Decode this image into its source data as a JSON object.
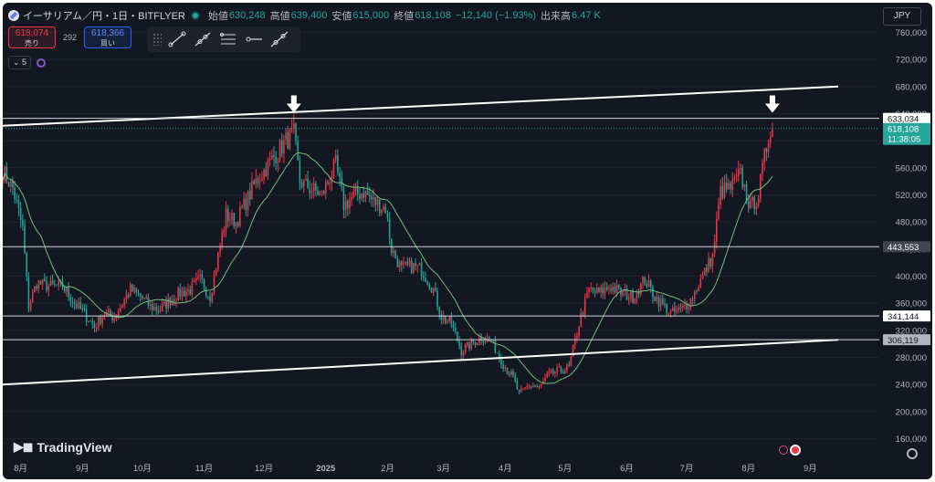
{
  "header": {
    "symbol": "イーサリアム／円・1日・BITFLYER",
    "open_label": "始値",
    "open": "630,248",
    "high_label": "高値",
    "high": "639,400",
    "low_label": "安値",
    "low": "615,000",
    "close_label": "終値",
    "close": "618,108",
    "change": "−12,140 (−1.93%)",
    "volume_label": "出来高",
    "volume": "6.47 K",
    "currency": "JPY"
  },
  "prices": {
    "sell_value": "618,074",
    "sell_label": "売り",
    "spread": "292",
    "buy_value": "618,366",
    "buy_label": "買い"
  },
  "indicator": {
    "tag": "5"
  },
  "tools": [
    "trend-line-icon",
    "ray-icon",
    "parallel-channel-icon",
    "horizontal-ray-icon",
    "extended-line-icon"
  ],
  "brand": {
    "text": "TradingView"
  },
  "colors": {
    "up": "#f23645",
    "down": "#26a69a",
    "ma": "#6fbf7f",
    "line": "#ffffff",
    "background": "#131722"
  },
  "chart_data": {
    "type": "candlestick",
    "x_ticks": [
      "8月",
      "9月",
      "10月",
      "11月",
      "12月",
      "2025",
      "2月",
      "3月",
      "4月",
      "5月",
      "6月",
      "7月",
      "8月",
      "9月"
    ],
    "y_ticks": [
      "160,000",
      "200,000",
      "240,000",
      "280,000",
      "320,000",
      "360,000",
      "400,000",
      "440,000",
      "480,000",
      "520,000",
      "560,000",
      "600,000",
      "640,000",
      "680,000",
      "720,000",
      "760,000"
    ],
    "ylim": [
      150000,
      770000
    ],
    "price_labels": [
      {
        "value": "633,034",
        "price": 633034
      },
      {
        "value": "618,108",
        "price": 618108,
        "countdown": "11:38:05"
      },
      {
        "value": "443,553",
        "price": 443553
      },
      {
        "value": "341,144",
        "price": 341144
      },
      {
        "value": "306,119",
        "price": 306119
      }
    ],
    "series_points": [
      [
        "2024-07-23",
        555000
      ],
      [
        "2024-07-28",
        530000
      ],
      [
        "2024-08-02",
        470000
      ],
      [
        "2024-08-05",
        355000
      ],
      [
        "2024-08-09",
        390000
      ],
      [
        "2024-08-15",
        385000
      ],
      [
        "2024-08-22",
        385000
      ],
      [
        "2024-08-28",
        360000
      ],
      [
        "2024-09-02",
        345000
      ],
      [
        "2024-09-07",
        325000
      ],
      [
        "2024-09-12",
        345000
      ],
      [
        "2024-09-17",
        340000
      ],
      [
        "2024-09-25",
        380000
      ],
      [
        "2024-09-30",
        370000
      ],
      [
        "2024-10-05",
        355000
      ],
      [
        "2024-10-10",
        350000
      ],
      [
        "2024-10-15",
        365000
      ],
      [
        "2024-10-20",
        375000
      ],
      [
        "2024-10-25",
        380000
      ],
      [
        "2024-10-30",
        395000
      ],
      [
        "2024-11-04",
        370000
      ],
      [
        "2024-11-08",
        430000
      ],
      [
        "2024-11-12",
        490000
      ],
      [
        "2024-11-17",
        480000
      ],
      [
        "2024-11-22",
        510000
      ],
      [
        "2024-11-27",
        540000
      ],
      [
        "2024-12-02",
        560000
      ],
      [
        "2024-12-07",
        580000
      ],
      [
        "2024-12-12",
        600000
      ],
      [
        "2024-12-16",
        610000
      ],
      [
        "2024-12-19",
        540000
      ],
      [
        "2024-12-24",
        530000
      ],
      [
        "2024-12-30",
        520000
      ],
      [
        "2025-01-06",
        565000
      ],
      [
        "2025-01-10",
        505000
      ],
      [
        "2025-01-16",
        520000
      ],
      [
        "2025-01-20",
        525000
      ],
      [
        "2025-01-25",
        510000
      ],
      [
        "2025-01-31",
        500000
      ],
      [
        "2025-02-03",
        440000
      ],
      [
        "2025-02-08",
        410000
      ],
      [
        "2025-02-13",
        415000
      ],
      [
        "2025-02-18",
        410000
      ],
      [
        "2025-02-24",
        380000
      ],
      [
        "2025-02-28",
        340000
      ],
      [
        "2025-03-05",
        330000
      ],
      [
        "2025-03-10",
        290000
      ],
      [
        "2025-03-15",
        300000
      ],
      [
        "2025-03-20",
        310000
      ],
      [
        "2025-03-25",
        305000
      ],
      [
        "2025-03-31",
        270000
      ],
      [
        "2025-04-05",
        250000
      ],
      [
        "2025-04-08",
        225000
      ],
      [
        "2025-04-13",
        240000
      ],
      [
        "2025-04-18",
        235000
      ],
      [
        "2025-04-23",
        255000
      ],
      [
        "2025-04-28",
        260000
      ],
      [
        "2025-05-03",
        265000
      ],
      [
        "2025-05-08",
        330000
      ],
      [
        "2025-05-13",
        380000
      ],
      [
        "2025-05-18",
        375000
      ],
      [
        "2025-05-24",
        385000
      ],
      [
        "2025-05-29",
        375000
      ],
      [
        "2025-06-04",
        370000
      ],
      [
        "2025-06-10",
        395000
      ],
      [
        "2025-06-15",
        370000
      ],
      [
        "2025-06-20",
        355000
      ],
      [
        "2025-06-23",
        345000
      ],
      [
        "2025-06-28",
        350000
      ],
      [
        "2025-07-03",
        365000
      ],
      [
        "2025-07-09",
        400000
      ],
      [
        "2025-07-14",
        430000
      ],
      [
        "2025-07-18",
        525000
      ],
      [
        "2025-07-23",
        530000
      ],
      [
        "2025-07-28",
        550000
      ],
      [
        "2025-08-02",
        500000
      ],
      [
        "2025-08-06",
        520000
      ],
      [
        "2025-08-09",
        575000
      ],
      [
        "2025-08-12",
        620000
      ],
      [
        "2025-08-13",
        618000
      ]
    ],
    "annotations": [
      {
        "type": "trendline",
        "from": [
          "2024-07-23",
          622000
        ],
        "to": [
          "2025-09-15",
          680000
        ]
      },
      {
        "type": "trendline",
        "from": [
          "2024-07-23",
          240000
        ],
        "to": [
          "2025-09-15",
          306000
        ]
      },
      {
        "type": "horizontal",
        "price": 443553
      },
      {
        "type": "horizontal",
        "price": 633034
      },
      {
        "type": "horizontal",
        "price": 306119
      },
      {
        "type": "horizontal",
        "price": 341144
      },
      {
        "type": "arrow-down",
        "date": "2024-12-16",
        "price": 640000
      },
      {
        "type": "arrow-down",
        "date": "2025-08-13",
        "price": 640000
      }
    ]
  }
}
